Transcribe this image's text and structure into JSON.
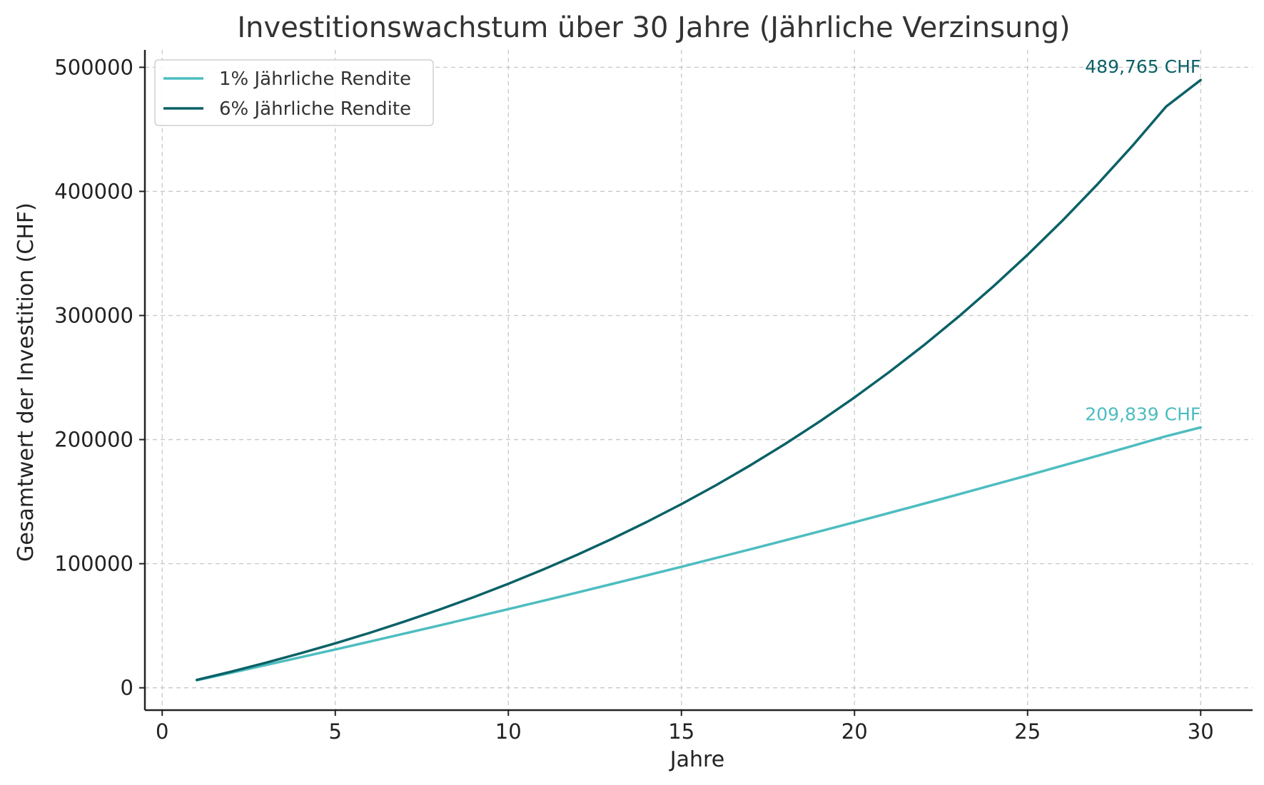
{
  "chart_data": {
    "type": "line",
    "title": "Investitionswachstum über 30 Jahre (Jährliche Verzinsung)",
    "xlabel": "Jahre",
    "ylabel": "Gesamtwert der Investition (CHF)",
    "xlim": [
      -0.5,
      31.5
    ],
    "ylim": [
      -18000,
      514000
    ],
    "xticks": [
      0,
      5,
      10,
      15,
      20,
      25,
      30
    ],
    "xtick_labels": [
      "0",
      "5",
      "10",
      "15",
      "20",
      "25",
      "30"
    ],
    "yticks": [
      0,
      100000,
      200000,
      300000,
      400000,
      500000
    ],
    "ytick_labels": [
      "0",
      "100000",
      "200000",
      "300000",
      "400000",
      "500000"
    ],
    "grid": true,
    "legend_position": "top-left",
    "x": [
      1,
      2,
      3,
      4,
      5,
      6,
      7,
      8,
      9,
      10,
      11,
      12,
      13,
      14,
      15,
      16,
      17,
      18,
      19,
      20,
      21,
      22,
      23,
      24,
      25,
      26,
      27,
      28,
      29,
      30
    ],
    "series": [
      {
        "name": "1% Jährliche Rendite",
        "color": "#4dbdc0",
        "values": [
          6060,
          12181,
          18363,
          24607,
          30913,
          37282,
          43715,
          50212,
          56774,
          63402,
          70096,
          76857,
          83686,
          90583,
          97549,
          104584,
          111690,
          118867,
          126116,
          133437,
          140831,
          148300,
          155843,
          163461,
          171156,
          178928,
          186777,
          194705,
          202712,
          209839
        ],
        "end_label": "209,839 CHF"
      },
      {
        "name": "6% Jährliche Rendite",
        "color": "#0a6166",
        "values": [
          6360,
          13102,
          20248,
          27823,
          35852,
          44363,
          53385,
          62948,
          73085,
          83830,
          95220,
          107293,
          120090,
          133656,
          148035,
          163277,
          179434,
          196560,
          214714,
          233957,
          254354,
          275975,
          298893,
          323186,
          348937,
          376233,
          405167,
          435837,
          468347,
          489765
        ],
        "end_label": "489,765 CHF"
      }
    ]
  }
}
